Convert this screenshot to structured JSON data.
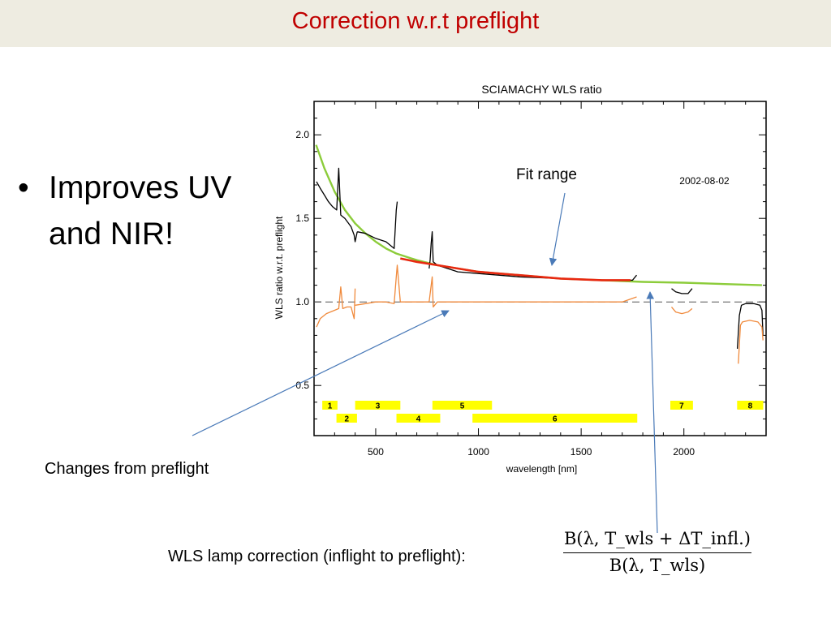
{
  "slide": {
    "title": "Correction w.r.t preflight",
    "bullet": "Improves UV and NIR!",
    "bullet_symbol": "•",
    "annotations": {
      "fit_range": "Fit range",
      "changes_from_preflight": "Changes from  preflight",
      "wls_lamp_correction": "WLS lamp correction (inflight to preflight):"
    },
    "formula": {
      "numerator": "B(λ, T_wls + ΔT_infl.)",
      "denominator": "B(λ, T_wls)"
    },
    "colors": {
      "title": "#c00000",
      "title_bar": "#eeece1",
      "arrow": "#4a7ab8"
    }
  },
  "chart_data": {
    "type": "line",
    "title": "SCIAMACHY WLS ratio",
    "date_label": "2002-08-02",
    "xlabel": "wavelength [nm]",
    "ylabel": "WLS ratio w.r.t. preflight",
    "xlim": [
      200,
      2400
    ],
    "ylim": [
      0.2,
      2.2
    ],
    "x_ticks": [
      500,
      1000,
      1500,
      2000
    ],
    "y_ticks": [
      0.5,
      1.0,
      1.5,
      2.0
    ],
    "y_tick_labels": [
      "0.5",
      "1.0",
      "1.5",
      "2.0"
    ],
    "reference_line": 1.0,
    "colors": {
      "fit": "#8ccc3a",
      "fit_range": "#e82810",
      "ratio": "#000000",
      "changes": "#f08a3c",
      "channel_band": "#ffff00"
    },
    "series": [
      {
        "color": "#8ccc3a",
        "x": [
          210,
          250,
          300,
          350,
          400,
          450,
          500,
          550,
          600,
          650,
          700,
          800,
          900,
          1000,
          1200,
          1400,
          1600,
          1800,
          2000,
          2200,
          2380
        ],
        "y": [
          1.94,
          1.8,
          1.66,
          1.55,
          1.47,
          1.41,
          1.36,
          1.32,
          1.29,
          1.27,
          1.25,
          1.22,
          1.2,
          1.18,
          1.16,
          1.14,
          1.13,
          1.12,
          1.115,
          1.107,
          1.1
        ]
      },
      {
        "color": "#000000",
        "segments": [
          {
            "x": [
              212,
              230,
              250,
              270,
              290,
              310,
              320,
              330,
              350,
              380,
              395,
              400,
              410
            ],
            "y": [
              1.72,
              1.68,
              1.64,
              1.6,
              1.57,
              1.55,
              1.8,
              1.52,
              1.5,
              1.45,
              1.4,
              1.36,
              1.42
            ]
          },
          {
            "x": [
              410,
              450,
              500,
              550,
              580,
              590,
              600,
              605
            ],
            "y": [
              1.42,
              1.41,
              1.38,
              1.36,
              1.33,
              1.32,
              1.55,
              1.6
            ]
          },
          {
            "x": [
              760,
              765,
              770,
              775,
              780,
              800,
              850,
              900,
              1000
            ],
            "y": [
              1.2,
              1.25,
              1.35,
              1.42,
              1.24,
              1.22,
              1.2,
              1.18,
              1.17
            ]
          },
          {
            "x": [
              1000,
              1200,
              1400,
              1600,
              1700,
              1750,
              1770
            ],
            "y": [
              1.17,
              1.15,
              1.14,
              1.13,
              1.13,
              1.13,
              1.16
            ]
          },
          {
            "x": [
              1940,
              1960,
              1990,
              2020,
              2040
            ],
            "y": [
              1.08,
              1.06,
              1.05,
              1.05,
              1.08
            ]
          },
          {
            "x": [
              2260,
              2270,
              2280,
              2300,
              2340,
              2370,
              2380,
              2385
            ],
            "y": [
              0.72,
              0.92,
              0.98,
              0.99,
              0.99,
              0.98,
              0.95,
              0.8
            ]
          }
        ]
      },
      {
        "color": "#e82810",
        "x": [
          620,
          700,
          800,
          900,
          1000,
          1100,
          1200,
          1300,
          1400,
          1500,
          1600,
          1700,
          1740
        ],
        "y": [
          1.26,
          1.24,
          1.22,
          1.2,
          1.18,
          1.17,
          1.16,
          1.15,
          1.14,
          1.135,
          1.13,
          1.13,
          1.13
        ]
      },
      {
        "color": "#f08a3c",
        "segments": [
          {
            "x": [
              212,
              230,
              260,
              300,
              320,
              330,
              340,
              360,
              380,
              395,
              400
            ],
            "y": [
              0.85,
              0.9,
              0.93,
              0.95,
              0.96,
              1.09,
              0.96,
              0.97,
              0.97,
              0.9,
              1.08
            ]
          },
          {
            "x": [
              400,
              450,
              500,
              550,
              590,
              600,
              605,
              620
            ],
            "y": [
              0.98,
              0.99,
              1.0,
              1.0,
              0.99,
              1.15,
              1.22,
              1.0
            ]
          },
          {
            "x": [
              620,
              700,
              760,
              775,
              780,
              800,
              900,
              1100,
              1300,
              1500,
              1700,
              1770
            ],
            "y": [
              1.0,
              1.0,
              1.0,
              1.15,
              0.97,
              1.0,
              1.0,
              1.0,
              1.0,
              1.0,
              1.0,
              1.03
            ]
          },
          {
            "x": [
              1940,
              1960,
              1990,
              2020,
              2040
            ],
            "y": [
              0.97,
              0.94,
              0.93,
              0.94,
              0.96
            ]
          },
          {
            "x": [
              2265,
              2275,
              2285,
              2320,
              2360,
              2380,
              2385
            ],
            "y": [
              0.63,
              0.86,
              0.88,
              0.89,
              0.88,
              0.85,
              0.77
            ]
          }
        ]
      }
    ],
    "channel_bands": [
      {
        "label": "1",
        "x_range": [
          240,
          314
        ],
        "row": 1
      },
      {
        "label": "3",
        "x_range": [
          400,
          620
        ],
        "row": 1
      },
      {
        "label": "5",
        "x_range": [
          776,
          1066
        ],
        "row": 1
      },
      {
        "label": "7",
        "x_range": [
          1934,
          2044
        ],
        "row": 1
      },
      {
        "label": "8",
        "x_range": [
          2259,
          2386
        ],
        "row": 1
      },
      {
        "label": "2",
        "x_range": [
          309,
          409
        ],
        "row": 2
      },
      {
        "label": "4",
        "x_range": [
          601,
          814
        ],
        "row": 2
      },
      {
        "label": "6",
        "x_range": [
          971,
          1773
        ],
        "row": 2
      }
    ]
  }
}
